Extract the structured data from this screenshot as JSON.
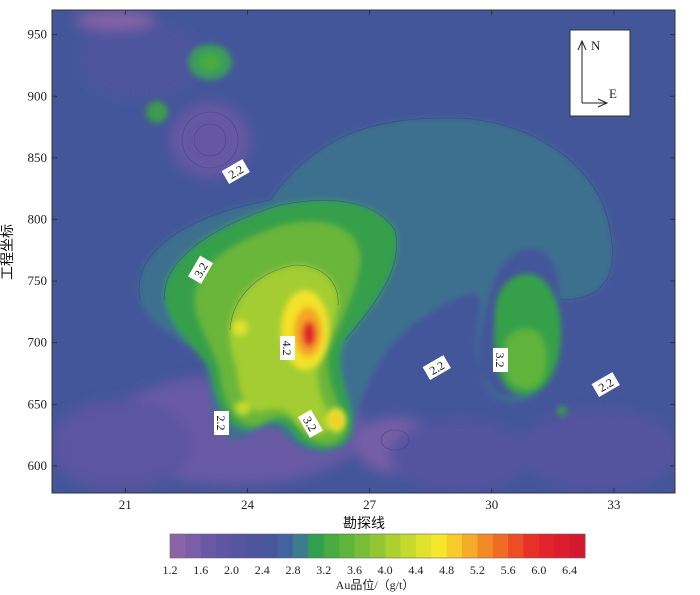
{
  "chart_data": {
    "type": "contour",
    "xlabel": "勘探线",
    "ylabel": "工程坐标",
    "xlim": [
      19.2,
      34.5
    ],
    "ylim": [
      578,
      970
    ],
    "xticks": [
      "21",
      "24",
      "27",
      "30",
      "33"
    ],
    "yticks": [
      "600",
      "650",
      "700",
      "750",
      "800",
      "850",
      "900",
      "950"
    ],
    "xtick_values": [
      21,
      24,
      27,
      30,
      33
    ],
    "ytick_values": [
      600,
      650,
      700,
      750,
      800,
      850,
      900,
      950
    ],
    "colorbar": {
      "label": "Au品位/（g/t）",
      "min": 1.2,
      "max": 6.6,
      "step": 0.2,
      "tick_labels": [
        "1.2",
        "1.6",
        "2.0",
        "2.4",
        "2.8",
        "3.2",
        "3.6",
        "4.0",
        "4.4",
        "4.8",
        "5.2",
        "5.6",
        "6.0",
        "6.4"
      ],
      "colors": [
        "#8b64a8",
        "#7b5ea8",
        "#6b58a4",
        "#5f55a2",
        "#5653a0",
        "#4f549e",
        "#48579c",
        "#4263a0",
        "#3c7c8c",
        "#30a050",
        "#47ab3f",
        "#5fb43a",
        "#78bd36",
        "#92c632",
        "#acd02f",
        "#c6d92e",
        "#e0e22d",
        "#f5e82c",
        "#f7cc2a",
        "#f5ac28",
        "#f28b27",
        "#ef6b26",
        "#ec4c26",
        "#e83027",
        "#e2232a",
        "#dc1d2d",
        "#d21a2e"
      ]
    },
    "contour_labels": [
      "2.2",
      "3.2",
      "4.2",
      "2.2",
      "3.2",
      "2.2",
      "3.2",
      "2.2"
    ],
    "north_arrow": {
      "n": "N",
      "e": "E"
    },
    "anomalies": [
      {
        "x": 25.6,
        "y": 710,
        "value": 6.6
      },
      {
        "x": 26.3,
        "y": 638,
        "value": 4.6
      },
      {
        "x": 23.8,
        "y": 712,
        "value": 4.4
      },
      {
        "x": 23.8,
        "y": 648,
        "value": 3.8
      },
      {
        "x": 30.7,
        "y": 688,
        "value": 3.6
      },
      {
        "x": 30.6,
        "y": 672,
        "value": 3.6
      },
      {
        "x": 23.1,
        "y": 929,
        "value": 3.5
      },
      {
        "x": 21.8,
        "y": 889,
        "value": 3.2
      },
      {
        "x": 31.8,
        "y": 645,
        "value": 3.0
      }
    ]
  }
}
